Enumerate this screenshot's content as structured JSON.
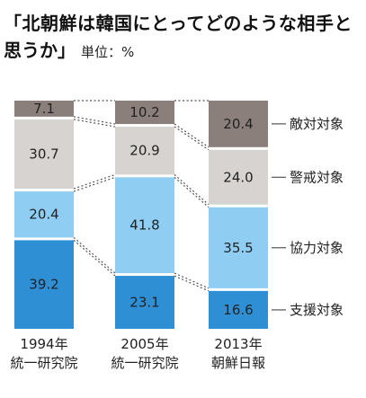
{
  "title_line1": "「北朝鮮は韓国にとってどのような相手と",
  "title_line2": "思うか」",
  "unit": "単位：%",
  "chart_data": {
    "type": "bar",
    "stacked": true,
    "percent": true,
    "categories": [
      [
        "1994年",
        "統一研究院"
      ],
      [
        "2005年",
        "統一研究院"
      ],
      [
        "2013年",
        "朝鮮日報"
      ]
    ],
    "series": [
      {
        "name": "支援対象",
        "values": [
          39.2,
          23.1,
          16.6
        ],
        "color": "#2f8fd5"
      },
      {
        "name": "協力対象",
        "values": [
          20.4,
          41.8,
          35.5
        ],
        "color": "#8fcdf3"
      },
      {
        "name": "警戒対象",
        "values": [
          30.7,
          20.9,
          24.0
        ],
        "color": "#d6d3d0"
      },
      {
        "name": "敵対対象",
        "values": [
          7.1,
          10.2,
          20.4
        ],
        "color": "#8a7f7a"
      }
    ],
    "labels": [
      [
        "39.2",
        "23.1",
        "16.6"
      ],
      [
        "20.4",
        "41.8",
        "35.5"
      ],
      [
        "30.7",
        "20.9",
        "24.0"
      ],
      [
        "7.1",
        "10.2",
        "20.4"
      ]
    ],
    "legend_position": "right"
  }
}
